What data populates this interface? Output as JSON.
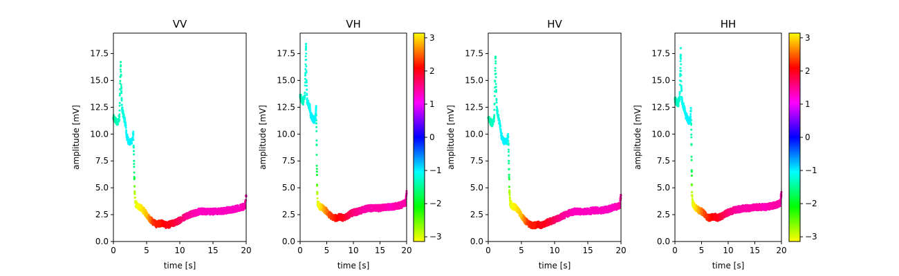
{
  "chart_data": [
    {
      "type": "scatter",
      "title": "VV",
      "xlabel": "time [s]",
      "ylabel": "amplitude [mV]",
      "xlim": [
        0,
        20
      ],
      "ylim": [
        0,
        19.4
      ],
      "xticks": [
        "0",
        "5",
        "10",
        "15",
        "20"
      ],
      "yticks": [
        "0.0",
        "2.5",
        "5.0",
        "7.5",
        "10.0",
        "12.5",
        "15.0",
        "17.5"
      ],
      "colorbar": false,
      "series": [
        {
          "x": [
            0.0,
            0.3,
            0.6,
            0.9,
            1.1,
            1.2,
            1.3,
            1.5,
            1.8,
            2.0,
            2.3,
            2.6,
            2.9,
            3.0,
            3.05,
            3.1,
            3.15,
            3.2,
            3.3,
            3.6,
            4.0,
            4.5,
            5.0,
            5.5,
            6.0,
            6.5,
            7.0,
            7.5,
            8.0,
            8.5,
            9.0,
            9.5,
            10.0,
            11.0,
            12.0,
            13.0,
            14.0,
            15.0,
            16.0,
            17.0,
            18.0,
            19.0,
            19.8,
            20.0
          ],
          "y": [
            11.5,
            11.3,
            11.0,
            11.6,
            16.7,
            14.0,
            12.3,
            11.8,
            11.0,
            9.8,
            9.3,
            9.2,
            9.6,
            10.0,
            8.8,
            7.5,
            6.0,
            4.5,
            3.6,
            3.3,
            3.2,
            2.9,
            2.5,
            2.1,
            1.8,
            1.6,
            1.7,
            1.7,
            1.5,
            1.6,
            1.7,
            1.8,
            2.0,
            2.4,
            2.6,
            2.8,
            2.8,
            2.8,
            2.8,
            2.9,
            3.0,
            3.1,
            3.3,
            4.2
          ],
          "phase": [
            -1.4,
            -1.4,
            -1.3,
            -1.3,
            -1.4,
            -1.3,
            -1.2,
            -1.2,
            -1.1,
            -1.0,
            -1.0,
            -1.0,
            -1.0,
            -1.1,
            -1.3,
            -1.5,
            -1.7,
            -2.8,
            -3.0,
            -3.1,
            3.1,
            3.0,
            2.9,
            2.6,
            2.3,
            2.2,
            2.2,
            2.1,
            2.0,
            2.0,
            1.9,
            1.8,
            1.7,
            1.5,
            1.4,
            1.3,
            1.3,
            1.3,
            1.3,
            1.3,
            1.3,
            1.3,
            1.4,
            1.4
          ]
        }
      ]
    },
    {
      "type": "scatter",
      "title": "VH",
      "xlabel": "time [s]",
      "ylabel": "amplitude [mV]",
      "xlim": [
        0,
        20
      ],
      "ylim": [
        0,
        19.4
      ],
      "xticks": [
        "0",
        "5",
        "10",
        "15",
        "20"
      ],
      "yticks": [
        "0.0",
        "2.5",
        "5.0",
        "7.5",
        "10.0",
        "12.5",
        "15.0",
        "17.5"
      ],
      "colorbar": true,
      "colorbar_ticks": [
        "3",
        "2",
        "1",
        "0",
        "−1",
        "−2",
        "−3"
      ],
      "series": [
        {
          "x": [
            0.0,
            0.3,
            0.6,
            0.9,
            1.1,
            1.2,
            1.3,
            1.5,
            1.8,
            2.0,
            2.3,
            2.6,
            2.9,
            3.0,
            3.05,
            3.1,
            3.15,
            3.2,
            3.3,
            3.6,
            4.0,
            4.5,
            5.0,
            5.5,
            6.0,
            6.5,
            7.0,
            7.5,
            8.0,
            8.5,
            9.0,
            9.5,
            10.0,
            11.0,
            12.0,
            13.0,
            14.0,
            15.0,
            16.0,
            17.0,
            18.0,
            19.0,
            19.8,
            20.0
          ],
          "y": [
            13.5,
            13.2,
            13.0,
            13.6,
            18.4,
            15.0,
            13.2,
            12.8,
            12.5,
            11.8,
            11.5,
            11.3,
            11.5,
            12.6,
            11.0,
            9.0,
            6.5,
            4.6,
            3.6,
            3.3,
            3.2,
            3.0,
            2.8,
            2.5,
            2.3,
            2.2,
            2.2,
            2.3,
            2.2,
            2.3,
            2.4,
            2.6,
            2.7,
            2.8,
            3.0,
            3.1,
            3.1,
            3.1,
            3.2,
            3.2,
            3.3,
            3.4,
            3.6,
            4.5
          ],
          "phase": [
            -1.3,
            -1.3,
            -1.3,
            -1.2,
            -1.2,
            -1.2,
            -1.1,
            -1.1,
            -1.1,
            -1.0,
            -1.0,
            -1.0,
            -1.0,
            -1.1,
            -1.3,
            -1.5,
            -1.8,
            -2.8,
            -3.0,
            3.1,
            3.0,
            2.8,
            2.6,
            2.4,
            2.3,
            2.2,
            2.1,
            2.0,
            2.0,
            1.9,
            1.8,
            1.7,
            1.6,
            1.5,
            1.4,
            1.4,
            1.4,
            1.4,
            1.4,
            1.3,
            1.4,
            1.4,
            1.4,
            1.4
          ]
        }
      ]
    },
    {
      "type": "scatter",
      "title": "HV",
      "xlabel": "time [s]",
      "ylabel": "amplitude [mV]",
      "xlim": [
        0,
        20
      ],
      "ylim": [
        0,
        19.4
      ],
      "xticks": [
        "0",
        "5",
        "10",
        "15",
        "20"
      ],
      "yticks": [
        "0.0",
        "2.5",
        "5.0",
        "7.5",
        "10.0",
        "12.5",
        "15.0",
        "17.5"
      ],
      "colorbar": false,
      "series": [
        {
          "x": [
            0.0,
            0.3,
            0.6,
            0.9,
            1.1,
            1.2,
            1.3,
            1.5,
            1.8,
            2.0,
            2.3,
            2.6,
            2.9,
            3.0,
            3.05,
            3.1,
            3.15,
            3.2,
            3.3,
            3.6,
            4.0,
            4.5,
            5.0,
            5.5,
            6.0,
            6.5,
            7.0,
            7.5,
            8.0,
            8.5,
            9.0,
            9.5,
            10.0,
            11.0,
            12.0,
            13.0,
            14.0,
            15.0,
            16.0,
            17.0,
            18.0,
            19.0,
            19.8,
            20.0
          ],
          "y": [
            11.5,
            11.2,
            11.0,
            11.5,
            17.2,
            14.0,
            12.2,
            11.6,
            10.8,
            9.8,
            9.4,
            9.2,
            9.5,
            10.0,
            9.0,
            7.5,
            6.0,
            4.5,
            3.6,
            3.3,
            3.2,
            2.9,
            2.4,
            2.0,
            1.7,
            1.5,
            1.5,
            1.6,
            1.5,
            1.6,
            1.8,
            1.9,
            2.0,
            2.3,
            2.6,
            2.8,
            2.8,
            2.8,
            2.9,
            2.9,
            3.0,
            3.2,
            3.3,
            4.3
          ],
          "phase": [
            -1.4,
            -1.4,
            -1.3,
            -1.3,
            -1.4,
            -1.3,
            -1.2,
            -1.2,
            -1.1,
            -1.0,
            -1.0,
            -1.0,
            -1.0,
            -1.1,
            -1.3,
            -1.5,
            -1.7,
            -2.8,
            -3.0,
            -3.1,
            3.1,
            3.0,
            2.9,
            2.6,
            2.3,
            2.2,
            2.2,
            2.1,
            2.0,
            2.0,
            1.9,
            1.8,
            1.7,
            1.5,
            1.4,
            1.3,
            1.3,
            1.3,
            1.3,
            1.3,
            1.3,
            1.3,
            1.4,
            1.4
          ]
        }
      ]
    },
    {
      "type": "scatter",
      "title": "HH",
      "xlabel": "time [s]",
      "ylabel": "amplitude [mV]",
      "xlim": [
        0,
        20
      ],
      "ylim": [
        0,
        19.4
      ],
      "xticks": [
        "0",
        "5",
        "10",
        "15",
        "20"
      ],
      "yticks": [
        "0.0",
        "2.5",
        "5.0",
        "7.5",
        "10.0",
        "12.5",
        "15.0",
        "17.5"
      ],
      "colorbar": true,
      "colorbar_ticks": [
        "3",
        "2",
        "1",
        "0",
        "−1",
        "−2",
        "−3"
      ],
      "series": [
        {
          "x": [
            0.0,
            0.3,
            0.6,
            0.9,
            1.1,
            1.2,
            1.3,
            1.5,
            1.8,
            2.0,
            2.3,
            2.6,
            2.9,
            3.0,
            3.05,
            3.1,
            3.15,
            3.2,
            3.3,
            3.6,
            4.0,
            4.5,
            5.0,
            5.5,
            6.0,
            6.5,
            7.0,
            7.5,
            8.0,
            8.5,
            9.0,
            9.5,
            10.0,
            11.0,
            12.0,
            13.0,
            14.0,
            15.0,
            16.0,
            17.0,
            18.0,
            19.0,
            19.8,
            20.0
          ],
          "y": [
            13.2,
            13.0,
            12.8,
            13.5,
            18.0,
            14.5,
            13.2,
            12.8,
            12.3,
            11.8,
            11.5,
            11.2,
            11.4,
            12.4,
            11.0,
            9.0,
            6.5,
            4.6,
            3.6,
            3.3,
            3.1,
            2.9,
            2.8,
            2.6,
            2.3,
            2.2,
            2.3,
            2.3,
            2.2,
            2.3,
            2.4,
            2.6,
            2.7,
            2.9,
            3.0,
            3.1,
            3.1,
            3.2,
            3.2,
            3.2,
            3.3,
            3.4,
            3.6,
            4.6
          ],
          "phase": [
            -1.3,
            -1.3,
            -1.3,
            -1.2,
            -1.2,
            -1.2,
            -1.1,
            -1.1,
            -1.1,
            -1.0,
            -1.0,
            -1.0,
            -1.0,
            -1.1,
            -1.3,
            -1.5,
            -1.8,
            -2.8,
            -3.0,
            3.1,
            3.0,
            2.8,
            2.6,
            2.4,
            2.3,
            2.2,
            2.1,
            2.0,
            2.0,
            1.9,
            1.8,
            1.7,
            1.6,
            1.5,
            1.4,
            1.4,
            1.4,
            1.4,
            1.4,
            1.3,
            1.4,
            1.4,
            1.4,
            1.4
          ]
        }
      ]
    }
  ]
}
